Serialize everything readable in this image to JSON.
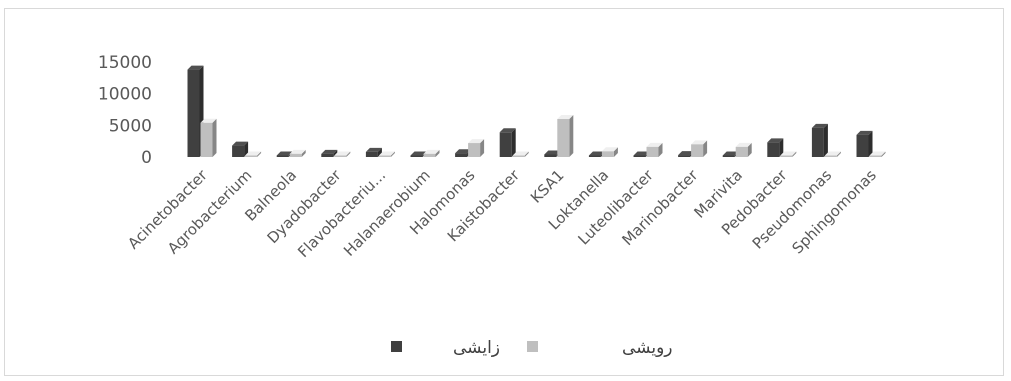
{
  "chart_data": {
    "type": "bar",
    "title": "",
    "xlabel": "",
    "ylabel": "",
    "ylim": [
      0,
      15000
    ],
    "y_ticks": [
      "0",
      "5000",
      "10000",
      "15000"
    ],
    "grid": false,
    "legend_position": "bottom",
    "categories": [
      "Acinetobacter",
      "Agrobacterium",
      "Balneola",
      "Dyadobacter",
      "Flavobacteriu...",
      "Halanaerobium",
      "Halomonas",
      "Kaistobacter",
      "KSA1",
      "Loktanella",
      "Luteolibacter",
      "Marinobacter",
      "Marivita",
      "Pedobacter",
      "Pseudomonas",
      "Sphingomonas"
    ],
    "series": [
      {
        "name": "زایشی",
        "color": "#404040",
        "values": [
          13800,
          1800,
          200,
          500,
          800,
          200,
          600,
          3900,
          400,
          100,
          200,
          300,
          100,
          2300,
          4600,
          3500
        ]
      },
      {
        "name": "رویشی",
        "color": "#bfbfbf",
        "values": [
          5400,
          0,
          500,
          0,
          0,
          500,
          2200,
          0,
          6000,
          900,
          1600,
          2000,
          1600,
          0,
          0,
          0
        ]
      }
    ]
  }
}
